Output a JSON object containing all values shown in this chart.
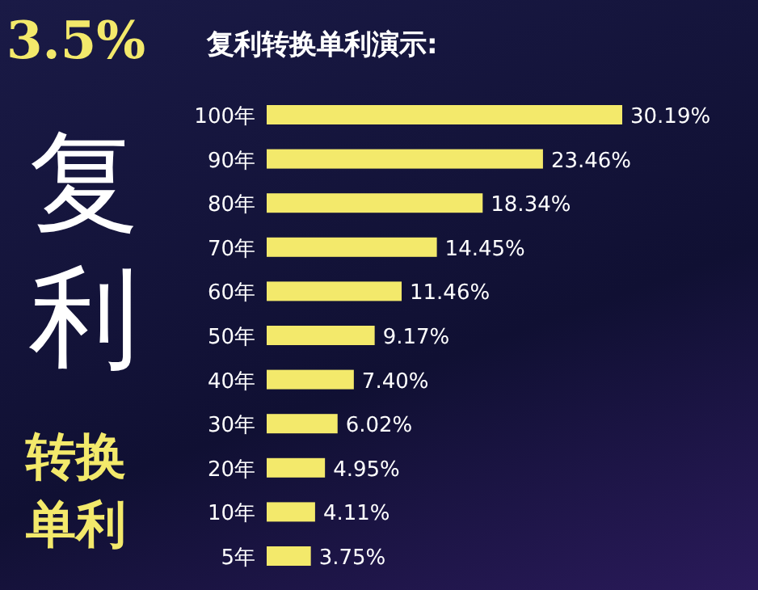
{
  "chart_data": {
    "type": "bar",
    "orientation": "horizontal",
    "title": "复利转换单利演示:",
    "annotations": [
      "3.5%",
      "复利",
      "转换单利"
    ],
    "categories": [
      "100年",
      "90年",
      "80年",
      "70年",
      "60年",
      "50年",
      "40年",
      "30年",
      "20年",
      "10年",
      "5年"
    ],
    "values": [
      30.19,
      23.46,
      18.34,
      14.45,
      11.46,
      9.17,
      7.4,
      6.02,
      4.95,
      4.11,
      3.75
    ],
    "value_labels": [
      "30.19%",
      "23.46%",
      "18.34%",
      "14.45%",
      "11.46%",
      "9.17%",
      "7.40%",
      "6.02%",
      "4.95%",
      "4.11%",
      "3.75%"
    ],
    "color": "#f3e96b",
    "xlim": [
      0,
      30.19
    ],
    "tick_labels": false
  }
}
